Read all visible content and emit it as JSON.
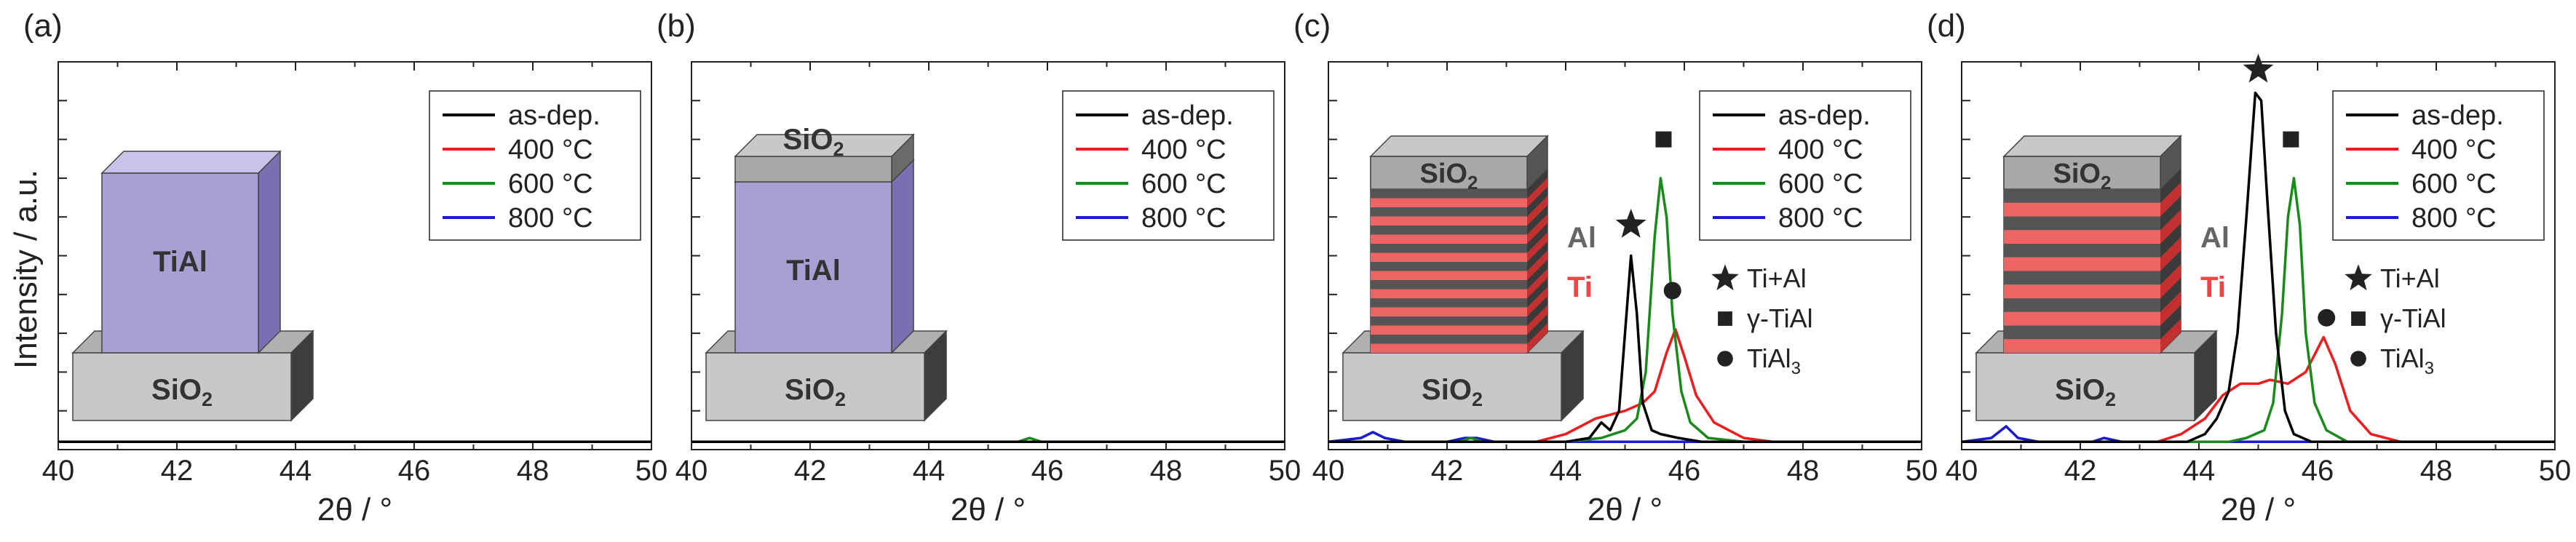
{
  "figure": {
    "ylabel": "Intensity / a.u.",
    "xlabel_symbol": "2θ",
    "xlabel_unit": "/ °"
  },
  "chart_data": [
    {
      "panel": "(a)",
      "type": "line",
      "xlim": [
        40,
        50
      ],
      "xticks": [
        40,
        42,
        44,
        46,
        48,
        50
      ],
      "ylim": [
        0,
        100
      ],
      "legend_position": "top-right",
      "series": [
        {
          "name": "as-dep.",
          "color": "#000000",
          "points": [
            [
              40,
              2
            ],
            [
              50,
              2
            ]
          ]
        },
        {
          "name": "400 °C",
          "color": "#ee1c1c",
          "points": [
            [
              40,
              2
            ],
            [
              50,
              2
            ]
          ]
        },
        {
          "name": "600 °C",
          "color": "#1a8a1a",
          "points": [
            [
              40,
              2
            ],
            [
              50,
              2
            ]
          ]
        },
        {
          "name": "800 °C",
          "color": "#1a1ad0",
          "points": [
            [
              40,
              2
            ],
            [
              50,
              2
            ]
          ]
        }
      ],
      "schematic": {
        "type": "single",
        "film": "TiAl",
        "substrate": "SiO",
        "substrate_sub": "2"
      }
    },
    {
      "panel": "(b)",
      "type": "line",
      "xlim": [
        40,
        50
      ],
      "xticks": [
        40,
        42,
        44,
        46,
        48,
        50
      ],
      "ylim": [
        0,
        100
      ],
      "legend_position": "top-right",
      "series": [
        {
          "name": "as-dep.",
          "color": "#000000",
          "points": [
            [
              40,
              2
            ],
            [
              50,
              2
            ]
          ]
        },
        {
          "name": "400 °C",
          "color": "#ee1c1c",
          "points": [
            [
              40,
              2
            ],
            [
              50,
              2
            ]
          ]
        },
        {
          "name": "600 °C",
          "color": "#1a8a1a",
          "points": [
            [
              40,
              2
            ],
            [
              45.5,
              2
            ],
            [
              45.7,
              3
            ],
            [
              45.9,
              2
            ],
            [
              50,
              2
            ]
          ]
        },
        {
          "name": "800 °C",
          "color": "#1a1ad0",
          "points": [
            [
              40,
              2
            ],
            [
              50,
              2
            ]
          ]
        }
      ],
      "schematic": {
        "type": "capped",
        "film": "TiAl",
        "cap": "SiO",
        "cap_sub": "2",
        "substrate": "SiO",
        "substrate_sub": "2"
      }
    },
    {
      "panel": "(c)",
      "type": "line",
      "xlim": [
        40,
        50
      ],
      "xticks": [
        40,
        42,
        44,
        46,
        48,
        50
      ],
      "ylim": [
        0,
        100
      ],
      "legend_position": "top-right",
      "series": [
        {
          "name": "as-dep.",
          "color": "#000000",
          "points": [
            [
              40,
              2
            ],
            [
              44.0,
              2
            ],
            [
              44.4,
              3
            ],
            [
              44.6,
              7
            ],
            [
              44.75,
              5
            ],
            [
              44.9,
              10
            ],
            [
              45.0,
              30
            ],
            [
              45.1,
              50
            ],
            [
              45.2,
              35
            ],
            [
              45.3,
              12
            ],
            [
              45.45,
              5
            ],
            [
              45.6,
              4
            ],
            [
              45.9,
              3
            ],
            [
              46.3,
              2
            ],
            [
              50,
              2
            ]
          ]
        },
        {
          "name": "400 °C",
          "color": "#ee1c1c",
          "points": [
            [
              40,
              2
            ],
            [
              43.5,
              2
            ],
            [
              44.0,
              4
            ],
            [
              44.5,
              8
            ],
            [
              45.0,
              10
            ],
            [
              45.3,
              12
            ],
            [
              45.5,
              15
            ],
            [
              45.7,
              25
            ],
            [
              45.85,
              31
            ],
            [
              46.0,
              24
            ],
            [
              46.2,
              14
            ],
            [
              46.5,
              7
            ],
            [
              47.0,
              3
            ],
            [
              47.5,
              2
            ],
            [
              50,
              2
            ]
          ]
        },
        {
          "name": "600 °C",
          "color": "#1a8a1a",
          "points": [
            [
              40,
              2
            ],
            [
              42.2,
              2
            ],
            [
              42.4,
              3
            ],
            [
              42.6,
              2
            ],
            [
              44.0,
              2
            ],
            [
              44.6,
              3
            ],
            [
              45.0,
              5
            ],
            [
              45.2,
              8
            ],
            [
              45.35,
              20
            ],
            [
              45.5,
              55
            ],
            [
              45.6,
              70
            ],
            [
              45.7,
              60
            ],
            [
              45.8,
              35
            ],
            [
              45.95,
              15
            ],
            [
              46.1,
              7
            ],
            [
              46.4,
              3
            ],
            [
              47.0,
              2
            ],
            [
              50,
              2
            ]
          ]
        },
        {
          "name": "800 °C",
          "color": "#1a1ad0",
          "points": [
            [
              40,
              2
            ],
            [
              40.55,
              3
            ],
            [
              40.75,
              4.5
            ],
            [
              40.95,
              3
            ],
            [
              41.3,
              2
            ],
            [
              42.0,
              2
            ],
            [
              42.3,
              3
            ],
            [
              42.5,
              3
            ],
            [
              42.8,
              2
            ],
            [
              50,
              2
            ]
          ]
        }
      ],
      "markers": [
        {
          "symbol": "star",
          "x": 45.1,
          "y": 58
        },
        {
          "symbol": "square",
          "x": 45.65,
          "y": 80
        },
        {
          "symbol": "circle",
          "x": 45.8,
          "y": 41
        }
      ],
      "phase_legend": [
        {
          "symbol": "star",
          "label": "Ti+Al"
        },
        {
          "symbol": "square",
          "label": "γ-TiAl"
        },
        {
          "symbol": "circle",
          "label": "TiAl",
          "sub": "3"
        }
      ],
      "schematic": {
        "type": "multilayer",
        "cap": "SiO",
        "cap_sub": "2",
        "substrate": "SiO",
        "substrate_sub": "2",
        "label_al": "Al",
        "label_ti": "Ti",
        "bilayers": 9
      }
    },
    {
      "panel": "(d)",
      "type": "line",
      "xlim": [
        40,
        50
      ],
      "xticks": [
        40,
        42,
        44,
        46,
        48,
        50
      ],
      "ylim": [
        0,
        100
      ],
      "legend_position": "top-right",
      "series": [
        {
          "name": "as-dep.",
          "color": "#000000",
          "points": [
            [
              40,
              2
            ],
            [
              43.8,
              2
            ],
            [
              44.1,
              4
            ],
            [
              44.3,
              8
            ],
            [
              44.5,
              15
            ],
            [
              44.65,
              30
            ],
            [
              44.8,
              60
            ],
            [
              44.95,
              92
            ],
            [
              45.05,
              90
            ],
            [
              45.15,
              65
            ],
            [
              45.3,
              30
            ],
            [
              45.45,
              10
            ],
            [
              45.6,
              4
            ],
            [
              45.9,
              2
            ],
            [
              50,
              2
            ]
          ]
        },
        {
          "name": "400 °C",
          "color": "#ee1c1c",
          "points": [
            [
              40,
              2
            ],
            [
              43.3,
              2
            ],
            [
              43.7,
              4
            ],
            [
              44.1,
              8
            ],
            [
              44.4,
              14
            ],
            [
              44.7,
              17
            ],
            [
              45.0,
              17
            ],
            [
              45.2,
              18
            ],
            [
              45.5,
              17
            ],
            [
              45.8,
              20
            ],
            [
              46.0,
              26
            ],
            [
              46.1,
              29
            ],
            [
              46.3,
              22
            ],
            [
              46.55,
              10
            ],
            [
              46.9,
              4
            ],
            [
              47.4,
              2
            ],
            [
              50,
              2
            ]
          ]
        },
        {
          "name": "600 °C",
          "color": "#1a8a1a",
          "points": [
            [
              40,
              2
            ],
            [
              44.5,
              2
            ],
            [
              44.8,
              3
            ],
            [
              45.1,
              5
            ],
            [
              45.25,
              12
            ],
            [
              45.4,
              35
            ],
            [
              45.5,
              60
            ],
            [
              45.6,
              70
            ],
            [
              45.7,
              58
            ],
            [
              45.8,
              30
            ],
            [
              45.95,
              12
            ],
            [
              46.15,
              5
            ],
            [
              46.5,
              2
            ],
            [
              50,
              2
            ]
          ]
        },
        {
          "name": "800 °C",
          "color": "#1a1ad0",
          "points": [
            [
              40,
              2
            ],
            [
              40.5,
              3
            ],
            [
              40.75,
              6
            ],
            [
              40.95,
              3
            ],
            [
              41.3,
              2
            ],
            [
              42.2,
              2
            ],
            [
              42.4,
              3
            ],
            [
              42.7,
              2
            ],
            [
              50,
              2
            ]
          ]
        }
      ],
      "markers": [
        {
          "symbol": "star",
          "x": 45.0,
          "y": 98
        },
        {
          "symbol": "square",
          "x": 45.55,
          "y": 80
        },
        {
          "symbol": "circle",
          "x": 46.15,
          "y": 34
        }
      ],
      "phase_legend": [
        {
          "symbol": "star",
          "label": "Ti+Al"
        },
        {
          "symbol": "square",
          "label": "γ-TiAl"
        },
        {
          "symbol": "circle",
          "label": "TiAl",
          "sub": "3"
        }
      ],
      "schematic": {
        "type": "multilayer",
        "cap": "SiO",
        "cap_sub": "2",
        "substrate": "SiO",
        "substrate_sub": "2",
        "label_al": "Al",
        "label_ti": "Ti",
        "bilayers": 6
      }
    }
  ]
}
